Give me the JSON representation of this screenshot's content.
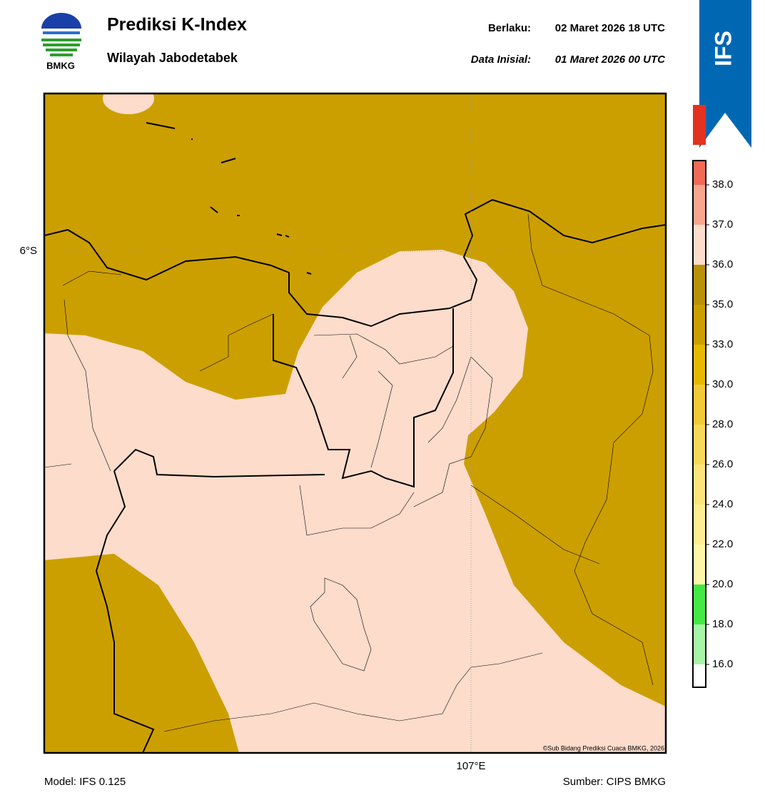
{
  "logo_text": "BMKG",
  "header": {
    "title": "Prediksi K-Index",
    "subtitle": "Wilayah Jabodetabek",
    "valid_label": "Berlaku:",
    "valid_time": "02 Maret 2026 18 UTC",
    "init_label": "Data Inisial:",
    "init_time": "01 Maret 2026 00 UTC"
  },
  "badge": "IFS",
  "map": {
    "lat_label": "6°S",
    "lon_label": "107°E",
    "copyright": "©Sub Bidang Prediksi Cuaca BMKG, 2026"
  },
  "colorbar": {
    "ticks": [
      {
        "value": 16,
        "label": "16.0"
      },
      {
        "value": 18,
        "label": "18.0"
      },
      {
        "value": 20,
        "label": "20.0"
      },
      {
        "value": 22,
        "label": "22.0"
      },
      {
        "value": 24,
        "label": "24.0"
      },
      {
        "value": 26,
        "label": "26.0"
      },
      {
        "value": 28,
        "label": "28.0"
      },
      {
        "value": 30,
        "label": "30.0"
      },
      {
        "value": 33,
        "label": "33.0"
      },
      {
        "value": 35,
        "label": "35.0"
      },
      {
        "value": 36,
        "label": "36.0"
      },
      {
        "value": 37,
        "label": "37.0"
      },
      {
        "value": 38,
        "label": "38.0"
      }
    ],
    "colors": [
      "#ffffff",
      "#a6f5a6",
      "#44e844",
      "#fff6a8",
      "#ffee90",
      "#fde47a",
      "#f8d85a",
      "#f2c936",
      "#e6b800",
      "#cc9f00",
      "#b8900a",
      "#fddccb",
      "#f8a58e",
      "#f06a55",
      "#e3321f"
    ]
  },
  "footer": {
    "model": "Model: IFS 0.125",
    "source": "Sumber: CIPS BMKG"
  }
}
